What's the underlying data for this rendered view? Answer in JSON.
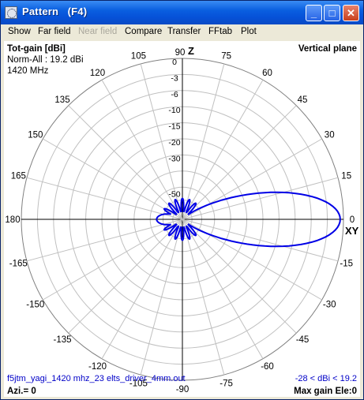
{
  "window": {
    "title": "Pattern   (F4)",
    "buttons": {
      "minimize": "_",
      "maximize": "□",
      "close": "✕"
    }
  },
  "menu": [
    {
      "label": "Show",
      "enabled": true
    },
    {
      "label": "Far field",
      "enabled": true
    },
    {
      "label": "Near field",
      "enabled": false
    },
    {
      "label": "Compare",
      "enabled": true
    },
    {
      "label": "Transfer",
      "enabled": true
    },
    {
      "label": "FFtab",
      "enabled": true
    },
    {
      "label": "Plot",
      "enabled": true
    }
  ],
  "plot": {
    "heading": "Tot-gain [dBi]",
    "norm": "Norm-All : 19.2 dBi",
    "freq": "1420 MHz",
    "plane": "Vertical plane",
    "axis_z": "Z",
    "axis_xy": "XY",
    "filename": "f5jtm_yagi_1420 mhz_23 elts_driver_4mm.out",
    "range": "-28 < dBi < 19.2",
    "azi": "Azi.= 0",
    "max_gain": "Max gain Ele:0",
    "angle_labels": [
      "180",
      "165",
      "150",
      "135",
      "120",
      "105",
      "90",
      "75",
      "60",
      "45",
      "30",
      "15",
      "0",
      "-15",
      "-30",
      "-45",
      "-60",
      "-75",
      "-90",
      "-105",
      "-120",
      "-135",
      "-150",
      "-165"
    ],
    "db_labels": [
      "0",
      "-3",
      "-6",
      "-10",
      "-15",
      "-20",
      "-30",
      "-50"
    ],
    "pattern_color": "#0000e6"
  }
}
